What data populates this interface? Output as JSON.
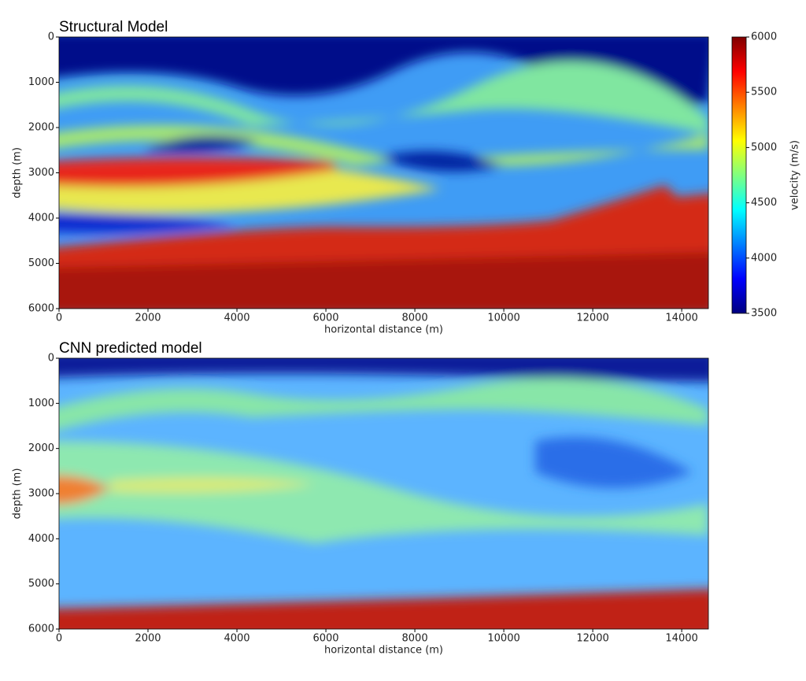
{
  "chart_data": [
    {
      "type": "heatmap",
      "title": "Structural Model",
      "xlabel": "horizontal distance (m)",
      "ylabel": "depth (m)",
      "xlim": [
        0,
        14600
      ],
      "ylim": [
        6000,
        0
      ],
      "xticks": [
        0,
        2000,
        4000,
        6000,
        8000,
        10000,
        12000,
        14000
      ],
      "yticks": [
        0,
        1000,
        2000,
        3000,
        4000,
        5000,
        6000
      ],
      "colorbar": {
        "label": "velocity (m/s)",
        "clim": [
          3500,
          6000
        ],
        "ticks": [
          3500,
          4000,
          4500,
          5000,
          5500,
          6000
        ],
        "colormap": "jet"
      }
    },
    {
      "type": "heatmap",
      "title": "CNN predicted model",
      "xlabel": "horizontal distance (m)",
      "ylabel": "depth (m)",
      "xlim": [
        0,
        14600
      ],
      "ylim": [
        6000,
        0
      ],
      "xticks": [
        0,
        2000,
        4000,
        6000,
        8000,
        10000,
        12000,
        14000
      ],
      "yticks": [
        0,
        1000,
        2000,
        3000,
        4000,
        5000,
        6000
      ]
    }
  ]
}
